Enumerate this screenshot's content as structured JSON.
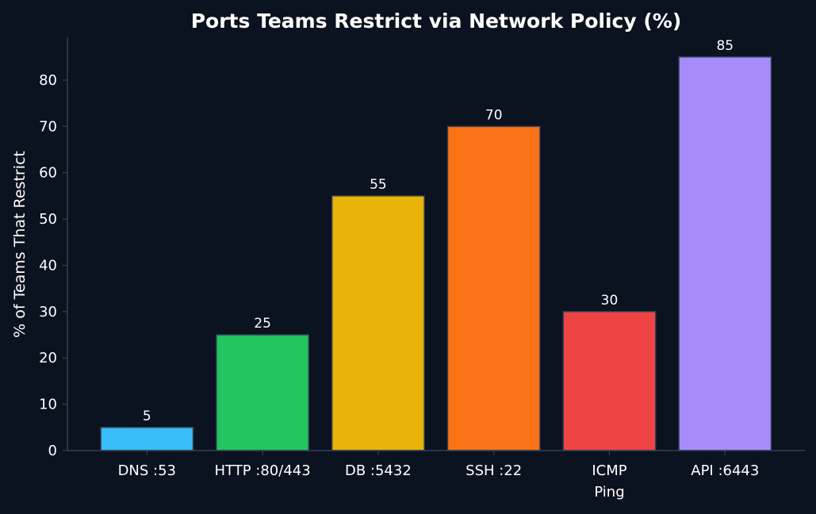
{
  "chart_data": {
    "type": "bar",
    "title": "Ports Teams Restrict via Network Policy (%)",
    "xlabel": "",
    "ylabel": "% of Teams That Restrict",
    "categories": [
      "DNS :53",
      "HTTP :80/443",
      "DB :5432",
      "SSH :22",
      "ICMP\nPing",
      "API :6443"
    ],
    "values": [
      5,
      25,
      55,
      70,
      30,
      85
    ],
    "data_labels": [
      "5",
      "25",
      "55",
      "70",
      "30",
      "85"
    ],
    "colors": [
      "#38bdf8",
      "#22c55e",
      "#eab308",
      "#f97316",
      "#ef4444",
      "#a78bfa"
    ],
    "ylim": [
      0,
      89.25
    ],
    "yticks": [
      0,
      10,
      20,
      30,
      40,
      50,
      60,
      70,
      80
    ],
    "grid": false,
    "legend": "none"
  },
  "theme": {
    "background": "#0b1220",
    "spine_color": "#334155",
    "text_color": "#ffffff",
    "bar_edge_color": "#334155"
  }
}
